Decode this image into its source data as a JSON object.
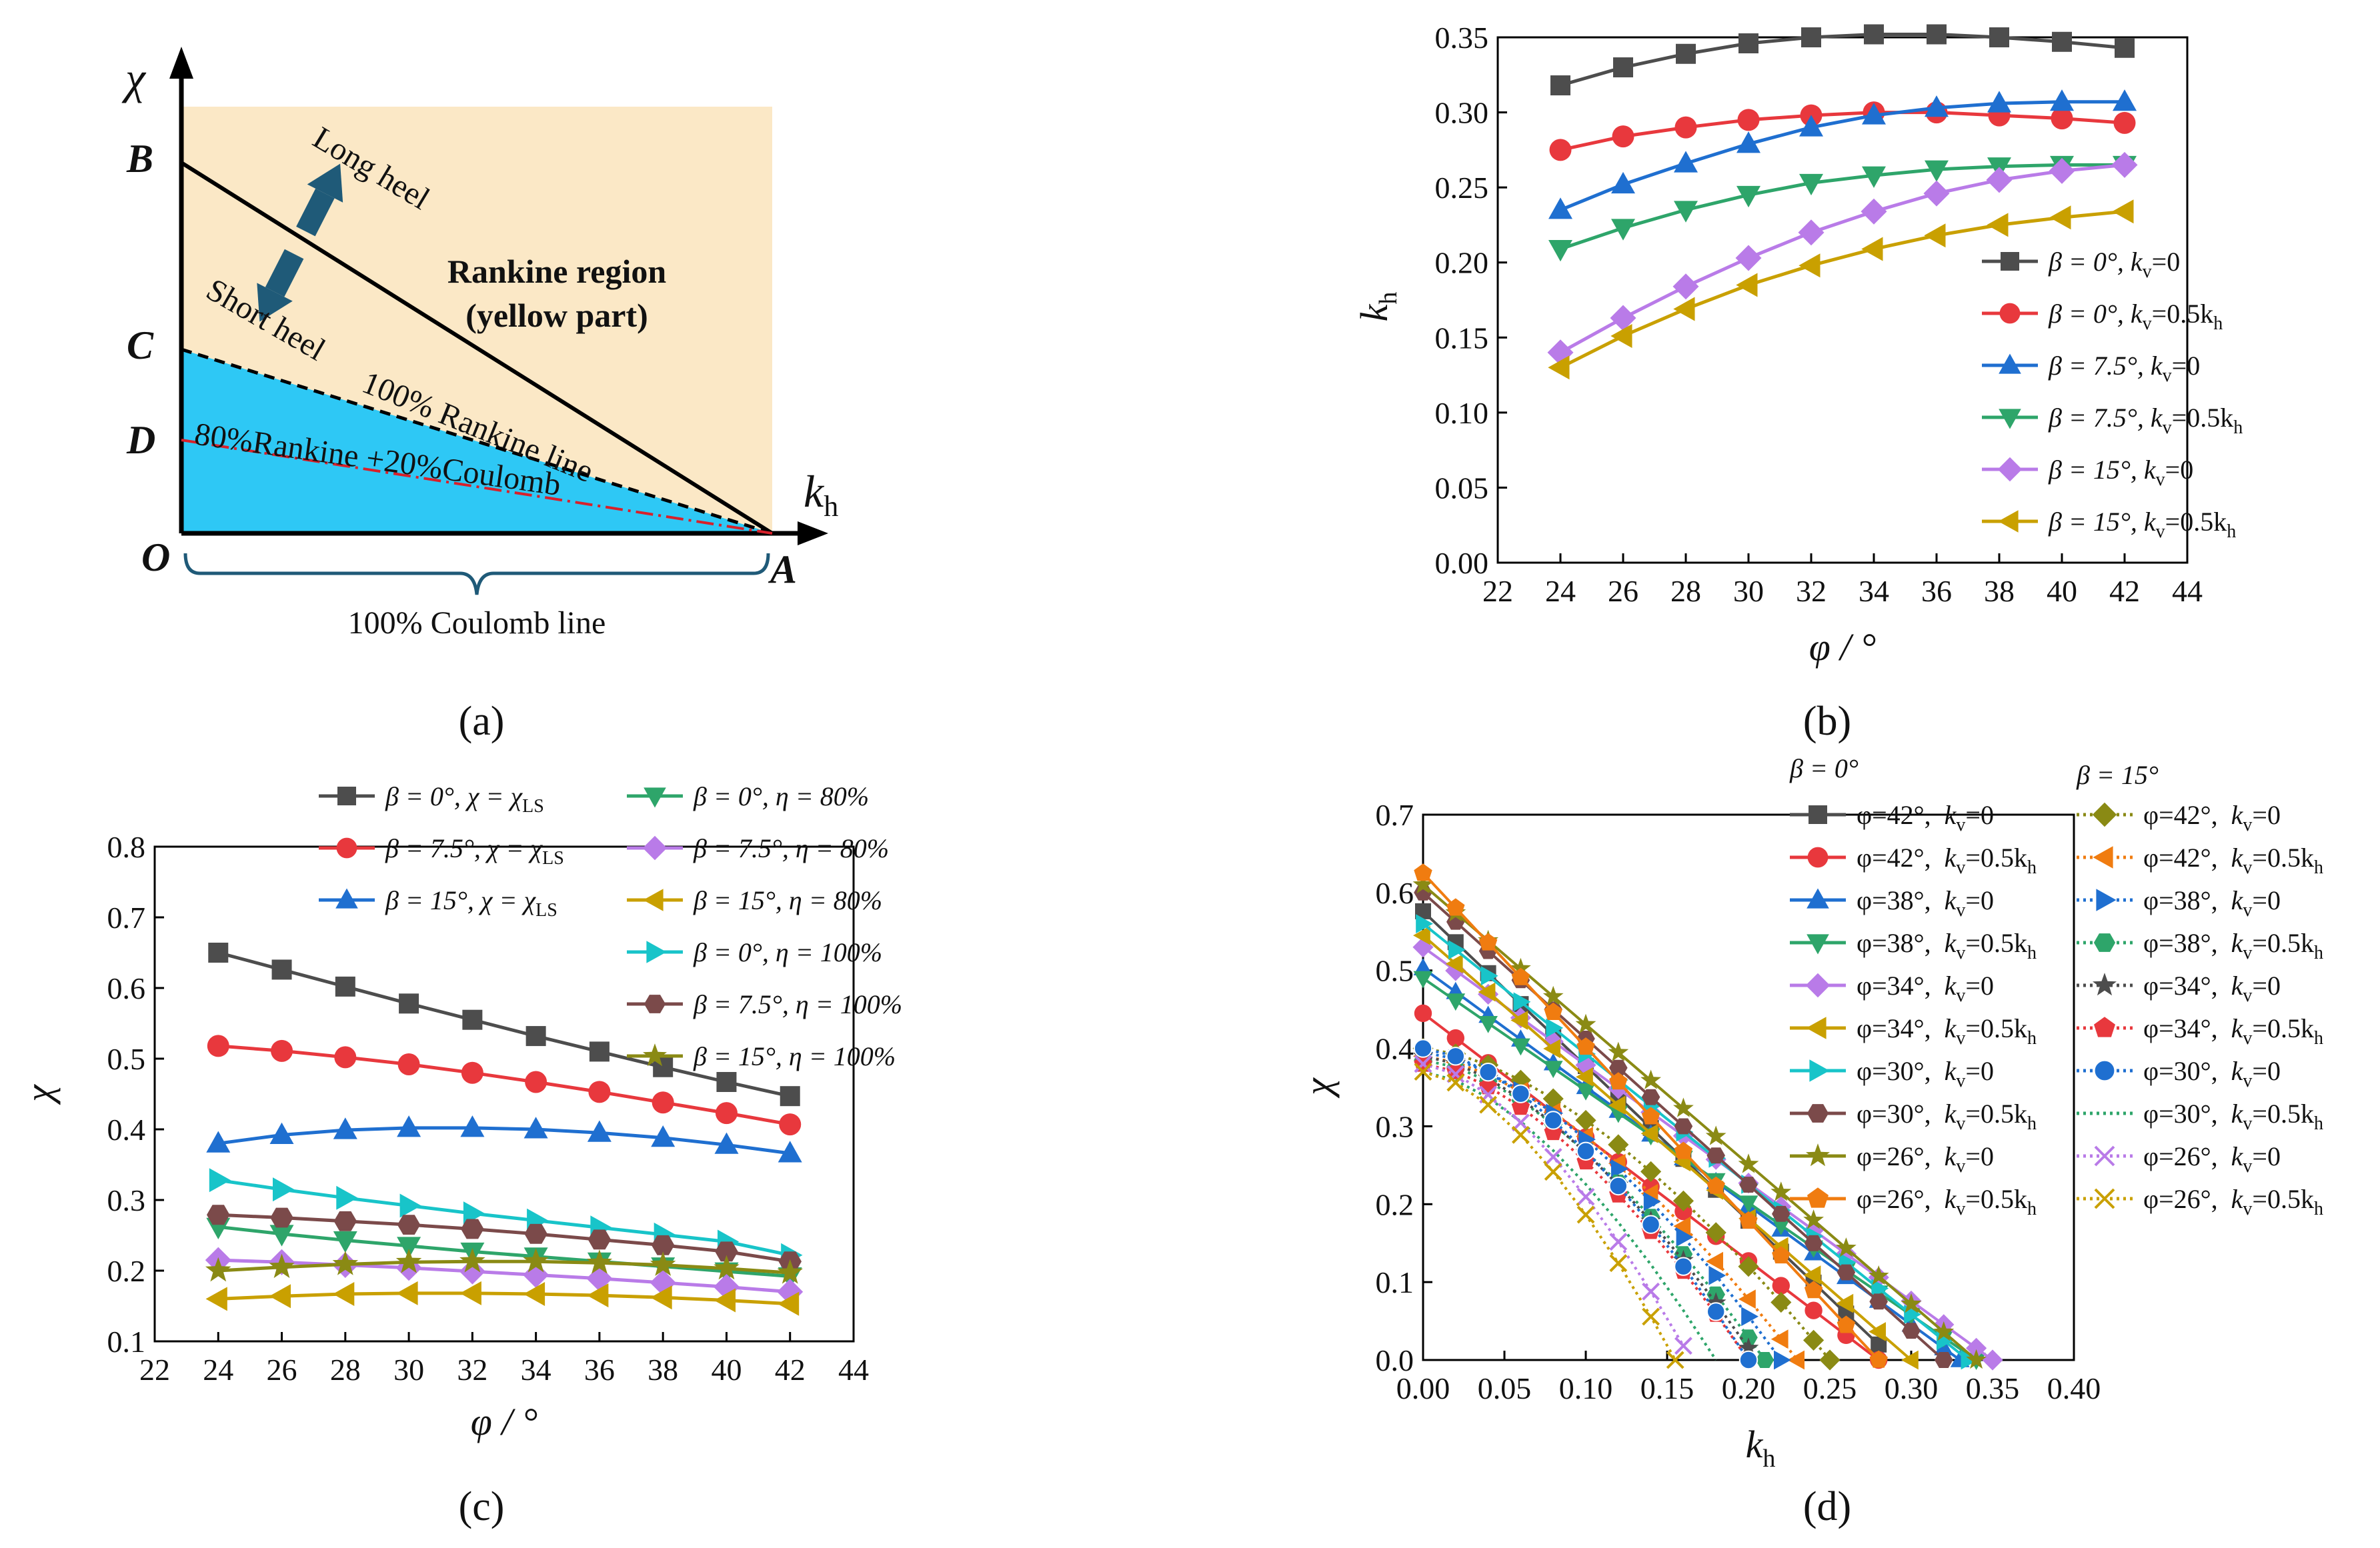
{
  "palette": {
    "black": "#4d4d4d",
    "red": "#e8383d",
    "blue": "#1f6fd0",
    "green": "#2ea56a",
    "purple": "#b97be8",
    "gold": "#c9a000",
    "cyan": "#18c4c9",
    "brown": "#7b4a4a",
    "olive": "#8a8a14",
    "orange": "#f07c10",
    "region_yellow": "#fbe8c6",
    "region_blue": "#2ec8f5",
    "arrow": "#1f5a78"
  },
  "captions": {
    "a": "(a)",
    "b": "(b)",
    "c": "(c)",
    "d": "(d)"
  },
  "diagram_a": {
    "axis_y": "χ",
    "axis_x": "k",
    "axis_x_sub": "h",
    "labels": {
      "B": "B",
      "C": "C",
      "D": "D",
      "O": "O",
      "A": "A"
    },
    "long_heel": "Long heel",
    "short_heel": "Short heel",
    "rankine_region_1": "Rankine region",
    "rankine_region_2": "(yellow part)",
    "rankine_line": "100% Rankine line",
    "mixed_line": "80%Rankine +20%Coulomb",
    "coulomb_line": "100% Coulomb line"
  },
  "chart_data": [
    {
      "id": "b",
      "type": "line",
      "xlabel": "φ / °",
      "ylabel": "kh",
      "xlim": [
        22,
        44
      ],
      "ylim": [
        0,
        0.35
      ],
      "xticks": [
        "22",
        "24",
        "26",
        "28",
        "30",
        "32",
        "34",
        "36",
        "38",
        "40",
        "42",
        "44"
      ],
      "yticks": [
        "0.00",
        "0.05",
        "0.10",
        "0.15",
        "0.20",
        "0.25",
        "0.30",
        "0.35"
      ],
      "x": [
        24,
        26,
        28,
        30,
        32,
        34,
        36,
        38,
        40,
        42
      ],
      "series": [
        {
          "name": "β = 0°, kv=0",
          "color": "black",
          "marker": "square",
          "values": [
            0.318,
            0.33,
            0.339,
            0.346,
            0.35,
            0.352,
            0.352,
            0.35,
            0.347,
            0.343
          ]
        },
        {
          "name": "β = 0°, kv=0.5kh",
          "color": "red",
          "marker": "circle",
          "values": [
            0.275,
            0.284,
            0.29,
            0.295,
            0.298,
            0.3,
            0.3,
            0.298,
            0.296,
            0.293
          ]
        },
        {
          "name": "β = 7.5°, kv=0",
          "color": "blue",
          "marker": "triangle-up",
          "values": [
            0.235,
            0.252,
            0.266,
            0.279,
            0.29,
            0.298,
            0.303,
            0.306,
            0.307,
            0.307
          ]
        },
        {
          "name": "β = 7.5°, kv=0.5kh",
          "color": "green",
          "marker": "triangle-down",
          "values": [
            0.209,
            0.223,
            0.235,
            0.245,
            0.253,
            0.258,
            0.262,
            0.264,
            0.265,
            0.265
          ]
        },
        {
          "name": "β = 15°, kv=0",
          "color": "purple",
          "marker": "diamond",
          "values": [
            0.14,
            0.163,
            0.184,
            0.203,
            0.22,
            0.234,
            0.246,
            0.255,
            0.261,
            0.265
          ]
        },
        {
          "name": "β = 15°, kv=0.5kh",
          "color": "gold",
          "marker": "triangle-left",
          "values": [
            0.13,
            0.151,
            0.169,
            0.185,
            0.198,
            0.209,
            0.218,
            0.225,
            0.23,
            0.234
          ]
        }
      ],
      "legend": [
        {
          "pre": "β = 0°, k",
          "sub": "v",
          "post": "=0",
          "sub2": ""
        },
        {
          "pre": "β = 0°, k",
          "sub": "v",
          "post": "=0.5k",
          "sub2": "h"
        },
        {
          "pre": "β = 7.5°, k",
          "sub": "v",
          "post": "=0",
          "sub2": ""
        },
        {
          "pre": "β = 7.5°, k",
          "sub": "v",
          "post": "=0.5k",
          "sub2": "h"
        },
        {
          "pre": "β = 15°, k",
          "sub": "v",
          "post": "=0",
          "sub2": ""
        },
        {
          "pre": "β = 15°, k",
          "sub": "v",
          "post": "=0.5k",
          "sub2": "h"
        }
      ]
    },
    {
      "id": "c",
      "type": "line",
      "xlabel": "φ / °",
      "ylabel": "χ",
      "xlim": [
        22,
        44
      ],
      "ylim": [
        0.1,
        0.8
      ],
      "xticks": [
        "22",
        "24",
        "26",
        "28",
        "30",
        "32",
        "34",
        "36",
        "38",
        "40",
        "42",
        "44"
      ],
      "yticks": [
        "0.1",
        "0.2",
        "0.3",
        "0.4",
        "0.5",
        "0.6",
        "0.7",
        "0.8"
      ],
      "x": [
        24,
        26,
        28,
        30,
        32,
        34,
        36,
        38,
        40,
        42
      ],
      "series": [
        {
          "name": "β = 0°, χ = χLS",
          "color": "black",
          "marker": "square",
          "values": [
            0.65,
            0.626,
            0.602,
            0.578,
            0.555,
            0.532,
            0.51,
            0.488,
            0.467,
            0.447
          ]
        },
        {
          "name": "β = 7.5°, χ = χLS",
          "color": "red",
          "marker": "circle",
          "values": [
            0.518,
            0.511,
            0.502,
            0.492,
            0.48,
            0.467,
            0.453,
            0.438,
            0.423,
            0.407
          ]
        },
        {
          "name": "β = 15°, χ = χLS",
          "color": "blue",
          "marker": "triangle-up",
          "values": [
            0.38,
            0.392,
            0.399,
            0.402,
            0.402,
            0.4,
            0.395,
            0.388,
            0.378,
            0.366
          ]
        },
        {
          "name": "β = 0°, η = 80%",
          "color": "green",
          "marker": "triangle-down",
          "values": [
            0.262,
            0.252,
            0.243,
            0.235,
            0.227,
            0.22,
            0.213,
            0.206,
            0.199,
            0.192
          ]
        },
        {
          "name": "β = 7.5°, η = 80%",
          "color": "purple",
          "marker": "diamond",
          "values": [
            0.215,
            0.212,
            0.208,
            0.204,
            0.199,
            0.194,
            0.189,
            0.183,
            0.177,
            0.17
          ]
        },
        {
          "name": "β = 15°, η = 80%",
          "color": "gold",
          "marker": "triangle-left",
          "values": [
            0.16,
            0.164,
            0.167,
            0.168,
            0.168,
            0.167,
            0.165,
            0.162,
            0.158,
            0.153
          ]
        },
        {
          "name": "β = 0°, η = 100%",
          "color": "cyan",
          "marker": "triangle-right",
          "values": [
            0.328,
            0.315,
            0.303,
            0.292,
            0.281,
            0.271,
            0.261,
            0.251,
            0.241,
            0.222
          ]
        },
        {
          "name": "β = 7.5°, η = 100%",
          "color": "brown",
          "marker": "hexagon",
          "values": [
            0.279,
            0.275,
            0.27,
            0.265,
            0.259,
            0.252,
            0.244,
            0.236,
            0.227,
            0.213
          ]
        },
        {
          "name": "β = 15°, η = 100%",
          "color": "olive",
          "marker": "star",
          "values": [
            0.2,
            0.205,
            0.209,
            0.212,
            0.213,
            0.213,
            0.211,
            0.208,
            0.203,
            0.197
          ]
        }
      ],
      "legend": [
        {
          "pre": "β = 0°, χ = χ",
          "sub": "LS",
          "post": ""
        },
        {
          "pre": "β = 7.5°, χ = χ",
          "sub": "LS",
          "post": ""
        },
        {
          "pre": "β = 15°, χ = χ",
          "sub": "LS",
          "post": ""
        },
        {
          "pre": "β = 0°, η = 80%",
          "sub": "",
          "post": ""
        },
        {
          "pre": "β = 7.5°, η = 80%",
          "sub": "",
          "post": ""
        },
        {
          "pre": "β = 15°, η = 80%",
          "sub": "",
          "post": ""
        },
        {
          "pre": "β = 0°, η = 100%",
          "sub": "",
          "post": ""
        },
        {
          "pre": "β = 7.5°, η = 100%",
          "sub": "",
          "post": ""
        },
        {
          "pre": "β = 15°, η = 100%",
          "sub": "",
          "post": ""
        }
      ]
    },
    {
      "id": "d",
      "type": "line",
      "xlabel": "kh",
      "ylabel": "χ",
      "xlim": [
        0,
        0.4
      ],
      "ylim": [
        0,
        0.7
      ],
      "xticks": [
        "0.00",
        "0.05",
        "0.10",
        "0.15",
        "0.20",
        "0.25",
        "0.30",
        "0.35",
        "0.40"
      ],
      "yticks": [
        "0.0",
        "0.1",
        "0.2",
        "0.3",
        "0.4",
        "0.5",
        "0.6",
        "0.7"
      ],
      "group_titles": [
        "β = 0°",
        "β = 15°"
      ],
      "series": [
        {
          "name": "β=0°, φ=42°, kv=0",
          "color": "black",
          "marker": "square",
          "style": "solid",
          "x0": 0.576,
          "xA": 0.29
        },
        {
          "name": "β=0°, φ=42°, kv=0.5kh",
          "color": "red",
          "marker": "circle",
          "style": "solid",
          "x0": 0.445,
          "xA": 0.28
        },
        {
          "name": "β=0°, φ=38°, kv=0",
          "color": "blue",
          "marker": "triangle-up",
          "style": "solid",
          "x0": 0.503,
          "xA": 0.33
        },
        {
          "name": "β=0°, φ=38°, kv=0.5kh",
          "color": "green",
          "marker": "triangle-down",
          "style": "solid",
          "x0": 0.49,
          "xA": 0.34
        },
        {
          "name": "β=0°, φ=34°, kv=0",
          "color": "purple",
          "marker": "diamond",
          "style": "solid",
          "x0": 0.53,
          "xA": 0.35
        },
        {
          "name": "β=0°, φ=34°, kv=0.5kh",
          "color": "gold",
          "marker": "triangle-left",
          "style": "solid",
          "x0": 0.545,
          "xA": 0.3
        },
        {
          "name": "β=0°, φ=30°, kv=0",
          "color": "cyan",
          "marker": "triangle-right",
          "style": "solid",
          "x0": 0.56,
          "xA": 0.335
        },
        {
          "name": "β=0°, φ=30°, kv=0.5kh",
          "color": "brown",
          "marker": "hexagon",
          "style": "solid",
          "x0": 0.6,
          "xA": 0.32
        },
        {
          "name": "β=0°, φ=26°, kv=0",
          "color": "olive",
          "marker": "star",
          "style": "solid",
          "x0": 0.61,
          "xA": 0.34
        },
        {
          "name": "β=0°, φ=26°, kv=0.5kh",
          "color": "orange",
          "marker": "pentagon",
          "style": "solid",
          "x0": 0.625,
          "xA": 0.28
        },
        {
          "name": "β=15°, φ=42°, kv=0",
          "color": "olive",
          "marker": "diamond",
          "style": "dotted",
          "x0": 0.4,
          "xA": 0.25
        },
        {
          "name": "β=15°, φ=42°, kv=0.5kh",
          "color": "orange",
          "marker": "triangle-left",
          "style": "dotted",
          "x0": 0.39,
          "xA": 0.23
        },
        {
          "name": "β=15°, φ=38°, kv=0",
          "color": "blue",
          "marker": "triangle-right",
          "style": "dotted",
          "x0": 0.395,
          "xA": 0.22
        },
        {
          "name": "β=15°, φ=38°, kv=0.5kh",
          "color": "green",
          "marker": "hexagon",
          "style": "dotted",
          "x0": 0.385,
          "xA": 0.21
        },
        {
          "name": "β=15°, φ=34°, kv=0",
          "color": "black",
          "marker": "star",
          "style": "dotted",
          "x0": 0.39,
          "xA": 0.205
        },
        {
          "name": "β=15°, φ=34°, kv=0.5kh",
          "color": "red",
          "marker": "pentagon",
          "style": "dotted",
          "x0": 0.38,
          "xA": 0.2
        },
        {
          "name": "β=15°, φ=30°, kv=0",
          "color": "blue",
          "marker": "sphere",
          "style": "dotted",
          "x0": 0.4,
          "xA": 0.2
        },
        {
          "name": "β=15°, φ=30°, kv=0.5kh",
          "color": "green",
          "marker": "none",
          "style": "dotted",
          "x0": 0.37,
          "xA": 0.18
        },
        {
          "name": "β=15°, φ=26°, kv=0",
          "color": "purple",
          "marker": "x",
          "style": "dotted",
          "x0": 0.38,
          "xA": 0.165
        },
        {
          "name": "β=15°, φ=26°, kv=0.5kh",
          "color": "gold",
          "marker": "x",
          "style": "dotted",
          "x0": 0.37,
          "xA": 0.155
        }
      ],
      "legend_left": [
        {
          "phi": "φ=42°,",
          "kv": "=0",
          "kh": false
        },
        {
          "phi": "φ=42°,",
          "kv": "=0.5k",
          "kh": true
        },
        {
          "phi": "φ=38°,",
          "kv": "=0",
          "kh": false
        },
        {
          "phi": "φ=38°,",
          "kv": "=0.5k",
          "kh": true
        },
        {
          "phi": "φ=34°,",
          "kv": "=0",
          "kh": false
        },
        {
          "phi": "φ=34°,",
          "kv": "=0.5k",
          "kh": true
        },
        {
          "phi": "φ=30°,",
          "kv": "=0",
          "kh": false
        },
        {
          "phi": "φ=30°,",
          "kv": "=0.5k",
          "kh": true
        },
        {
          "phi": "φ=26°,",
          "kv": "=0",
          "kh": false
        },
        {
          "phi": "φ=26°,",
          "kv": "=0.5k",
          "kh": true
        }
      ],
      "legend_right": [
        {
          "phi": "φ=42°,",
          "kv": "=0",
          "kh": false
        },
        {
          "phi": "φ=42°,",
          "kv": "=0.5k",
          "kh": true
        },
        {
          "phi": "φ=38°,",
          "kv": "=0",
          "kh": false
        },
        {
          "phi": "φ=38°,",
          "kv": "=0.5k",
          "kh": true
        },
        {
          "phi": "φ=34°,",
          "kv": "=0",
          "kh": false
        },
        {
          "phi": "φ=34°,",
          "kv": "=0.5k",
          "kh": true
        },
        {
          "phi": "φ=30°,",
          "kv": "=0",
          "kh": false
        },
        {
          "phi": "φ=30°,",
          "kv": "=0.5k",
          "kh": true
        },
        {
          "phi": "φ=26°,",
          "kv": "=0",
          "kh": false
        },
        {
          "phi": "φ=26°,",
          "kv": "=0.5k",
          "kh": true
        }
      ]
    }
  ]
}
